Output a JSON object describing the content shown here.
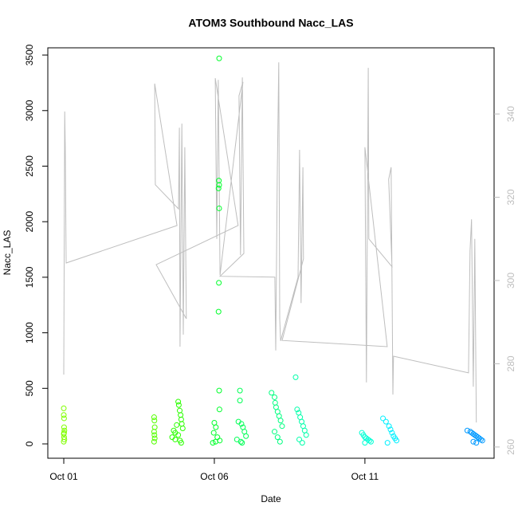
{
  "chart_data": {
    "type": "scatter",
    "title": "ATOM3 Southbound Nacc_LAS",
    "xlabel": "Date",
    "ylabel": "Nacc_LAS",
    "xlim": [
      -0.53,
      14.29
    ],
    "xticks": [
      {
        "value": 0,
        "label": "Oct 01"
      },
      {
        "value": 5,
        "label": "Oct 06"
      },
      {
        "value": 10,
        "label": "Oct 11"
      }
    ],
    "ylim": [
      -129,
      3565
    ],
    "yticks": [
      0,
      500,
      1000,
      1500,
      2000,
      2500,
      3000,
      3500
    ],
    "y2lim": [
      257.3,
      355.9
    ],
    "y2ticks": [
      260,
      280,
      300,
      320,
      340
    ],
    "y2color": "#bebebe",
    "series": [
      {
        "type": "line",
        "axis": "y2",
        "color": "#bebebe",
        "x": [
          0,
          0.03,
          0.05,
          0.08,
          3.76,
          3.02,
          3.04,
          3.81,
          3.84,
          3.86,
          3.92,
          3.97,
          4.02,
          4.07,
          3.07,
          5.79,
          5.03,
          5.08,
          5.13,
          5.19,
          5.95,
          5.82,
          5.87,
          5.93,
          5.98,
          5.19,
          7.01,
          7.04,
          7.09,
          7.14,
          7.17,
          7.2,
          7.78,
          7.83,
          7.88,
          7.94,
          7.96,
          7.25,
          10.74,
          10.0,
          10.05,
          10.11,
          10.13,
          10.9,
          10.79,
          10.87,
          10.93,
          10.95,
          13.44,
          13.49,
          13.54,
          13.6,
          13.65,
          13.7
        ],
        "values": [
          277.4,
          340.6,
          332.0,
          304.2,
          313.2,
          347.3,
          323.0,
          317.2,
          336.7,
          284.1,
          337.7,
          287.0,
          332.0,
          290.8,
          303.8,
          313.2,
          348.6,
          310.0,
          348.2,
          301.3,
          347.7,
          344.4,
          306.1,
          348.8,
          306.5,
          301.0,
          300.8,
          283.2,
          324.9,
          352.4,
          290.8,
          285.5,
          300.8,
          331.4,
          294.6,
          327.2,
          305.2,
          285.6,
          284.1,
          332.0,
          275.5,
          351.1,
          310.0,
          303.3,
          324.3,
          327.2,
          272.6,
          281.8,
          277.8,
          307.1,
          314.7,
          274.5,
          310.0,
          265.9
        ]
      },
      {
        "color": "#80ff00",
        "x": [
          0,
          0,
          0.01,
          0.01,
          0.02,
          0,
          0.01,
          0.02,
          0,
          0.01
        ],
        "values": [
          320,
          260,
          230,
          150,
          120,
          90,
          60,
          40,
          20,
          100
        ]
      },
      {
        "color": "#55ff00",
        "x": [
          3.0,
          3.01,
          3.02,
          3.0,
          3.01,
          3.02,
          3.0
        ],
        "values": [
          240,
          210,
          150,
          110,
          80,
          50,
          20
        ]
      },
      {
        "color": "#2bff00",
        "x": [
          3.6,
          3.7,
          3.75,
          3.8,
          3.82,
          3.85,
          3.88,
          3.9,
          3.92,
          3.95,
          3.8,
          3.86,
          3.9,
          3.7,
          3.65
        ],
        "values": [
          60,
          100,
          170,
          380,
          350,
          300,
          260,
          220,
          180,
          140,
          80,
          30,
          10,
          40,
          120
        ]
      },
      {
        "color": "#00ff2b",
        "x": [
          5.16,
          5.15,
          5.16,
          5.14,
          5.16,
          5.15,
          5.14,
          5.16,
          5.17,
          5.0,
          5.05,
          4.98,
          5.1,
          5.18,
          4.95,
          5.04
        ],
        "values": [
          3470,
          2370,
          2330,
          2300,
          2120,
          1450,
          1190,
          480,
          310,
          190,
          150,
          100,
          60,
          30,
          10,
          20
        ]
      },
      {
        "color": "#00ff55",
        "x": [
          5.85,
          5.85,
          5.8,
          5.9,
          5.95,
          6.0,
          6.05,
          5.75,
          5.88,
          5.92
        ],
        "values": [
          480,
          390,
          200,
          180,
          150,
          110,
          70,
          40,
          20,
          10
        ]
      },
      {
        "color": "#00ff80",
        "x": [
          6.9,
          7.0,
          7.02,
          7.05,
          7.1,
          7.15,
          7.2,
          7.25,
          7.0,
          7.1,
          7.18
        ],
        "values": [
          460,
          420,
          370,
          330,
          290,
          250,
          210,
          160,
          110,
          60,
          20
        ]
      },
      {
        "color": "#00ffaa",
        "x": [
          7.7,
          7.75,
          7.8,
          7.85,
          7.9,
          7.95,
          8.0,
          8.05,
          7.82,
          7.92
        ],
        "values": [
          600,
          310,
          280,
          240,
          200,
          160,
          120,
          80,
          40,
          10
        ]
      },
      {
        "color": "#00ffd5",
        "x": [
          9.9,
          9.95,
          10.0,
          10.05,
          10.1,
          10.15,
          10.2,
          10.0
        ],
        "values": [
          100,
          80,
          60,
          50,
          40,
          30,
          20,
          10
        ]
      },
      {
        "color": "#00f0ff",
        "x": [
          10.6,
          10.7,
          10.8,
          10.85,
          10.9,
          10.95,
          11.0,
          11.05,
          10.75
        ],
        "values": [
          230,
          200,
          160,
          130,
          100,
          70,
          50,
          30,
          10
        ]
      },
      {
        "color": "#0099ff",
        "x": [
          13.4,
          13.5,
          13.55,
          13.6,
          13.65,
          13.7,
          13.75,
          13.8,
          13.85,
          13.9,
          13.6,
          13.7
        ],
        "values": [
          120,
          110,
          100,
          90,
          80,
          70,
          60,
          50,
          40,
          30,
          20,
          10
        ]
      }
    ]
  }
}
